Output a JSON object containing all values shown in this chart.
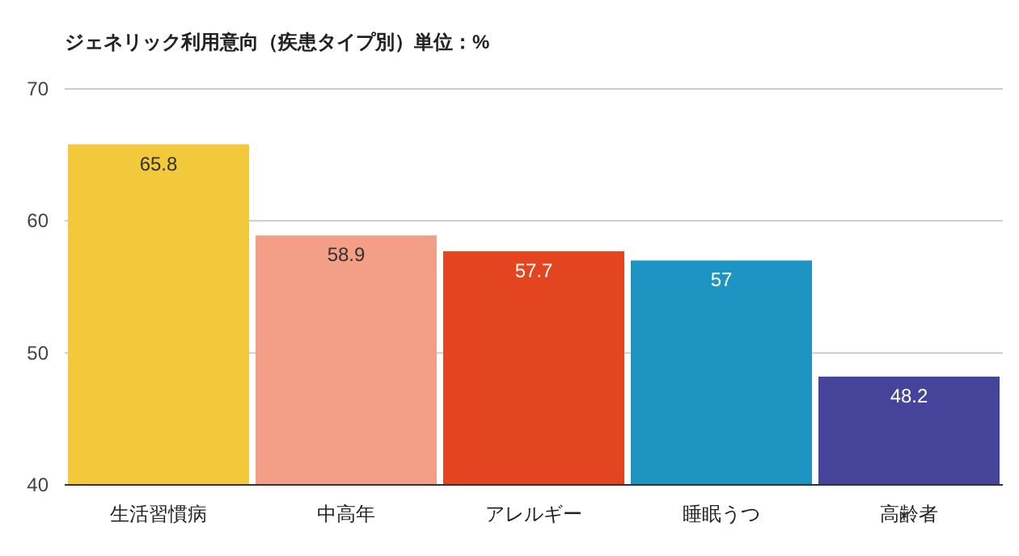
{
  "chart_data": {
    "type": "bar",
    "title": "ジェネリック利用意向（疾患タイプ別）単位：%",
    "categories": [
      "生活習慣病",
      "中高年",
      "アレルギー",
      "睡眠うつ",
      "高齢者"
    ],
    "values": [
      65.8,
      58.9,
      57.7,
      57,
      48.2
    ],
    "colors": [
      "#f1c93a",
      "#f39e86",
      "#e24520",
      "#1d94c2",
      "#46449a"
    ],
    "ylim": [
      40,
      70
    ],
    "yticks": [
      40,
      50,
      60,
      70
    ],
    "grid": "y",
    "data_labels": true
  }
}
